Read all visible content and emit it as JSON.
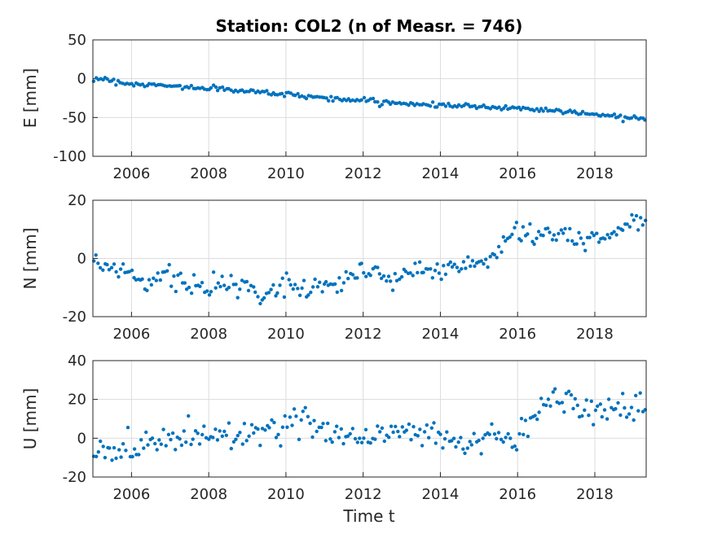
{
  "chart_data": {
    "type": "scatter",
    "title": "Station: COL2 (n of Measr. = 746)",
    "marker_color": "#0072BD",
    "x_label": "Time t",
    "x_range": [
      2005.0,
      2019.33
    ],
    "x_ticks": [
      "2006",
      "2008",
      "2010",
      "2012",
      "2014",
      "2016",
      "2018"
    ],
    "x_tick_values": [
      2006,
      2008,
      2010,
      2012,
      2014,
      2016,
      2018
    ],
    "grid": true,
    "subplots": [
      {
        "ylabel": "E [mm]",
        "ylim": [
          -100,
          50
        ],
        "yticks": [
          50,
          0,
          -50,
          -100
        ],
        "series": {
          "anchors_x": [
            2005.0,
            2005.4,
            2005.8,
            2006.5,
            2007.5,
            2008.5,
            2009.5,
            2010.5,
            2011.0,
            2012.0,
            2013.0,
            2014.0,
            2015.0,
            2016.0,
            2017.0,
            2018.0,
            2019.0,
            2019.33
          ],
          "anchors_y": [
            1,
            -1,
            -6,
            -8,
            -11,
            -14,
            -18,
            -22,
            -25,
            -28,
            -32,
            -34,
            -36,
            -38,
            -41,
            -46,
            -50,
            -51
          ],
          "noise": 1.5,
          "n": 250
        }
      },
      {
        "ylabel": "N [mm]",
        "ylim": [
          -20,
          20
        ],
        "yticks": [
          20,
          0,
          -20
        ],
        "series": {
          "anchors_x": [
            2005.0,
            2005.5,
            2006.0,
            2006.5,
            2006.8,
            2007.0,
            2007.5,
            2008.0,
            2008.5,
            2009.0,
            2009.5,
            2010.0,
            2010.5,
            2011.0,
            2011.5,
            2012.0,
            2012.3,
            2012.5,
            2013.0,
            2013.5,
            2014.0,
            2014.5,
            2015.0,
            2015.5,
            2016.0,
            2016.5,
            2017.0,
            2017.3,
            2017.5,
            2018.0,
            2018.5,
            2019.0,
            2019.33
          ],
          "anchors_y": [
            1,
            -3,
            -5,
            -9,
            -5,
            -6,
            -10,
            -10,
            -9,
            -11,
            -13,
            -8,
            -11,
            -9,
            -8,
            -3,
            -3,
            -8,
            -5,
            -5,
            -3,
            -3,
            -1,
            2,
            10,
            8,
            9,
            6,
            6,
            7,
            8,
            13,
            11
          ],
          "noise": 1.8,
          "n": 250
        }
      },
      {
        "ylabel": "U [mm]",
        "ylim": [
          -20,
          40
        ],
        "yticks": [
          40,
          20,
          0,
          -20
        ],
        "series": {
          "anchors_x": [
            2005.0,
            2005.5,
            2006.0,
            2007.0,
            2008.0,
            2009.0,
            2010.0,
            2010.5,
            2011.0,
            2012.0,
            2013.0,
            2014.0,
            2014.5,
            2015.0,
            2016.0,
            2016.2,
            2016.5,
            2017.3,
            2017.5,
            2018.0,
            2018.5,
            2019.0,
            2019.33
          ],
          "anchors_y": [
            -7,
            -9,
            -3,
            0,
            2,
            3,
            6,
            8,
            5,
            1,
            3,
            2,
            -3,
            0,
            0,
            5,
            16,
            21,
            18,
            16,
            16,
            14,
            17
          ],
          "noise": 3.8,
          "n": 246
        }
      }
    ]
  }
}
